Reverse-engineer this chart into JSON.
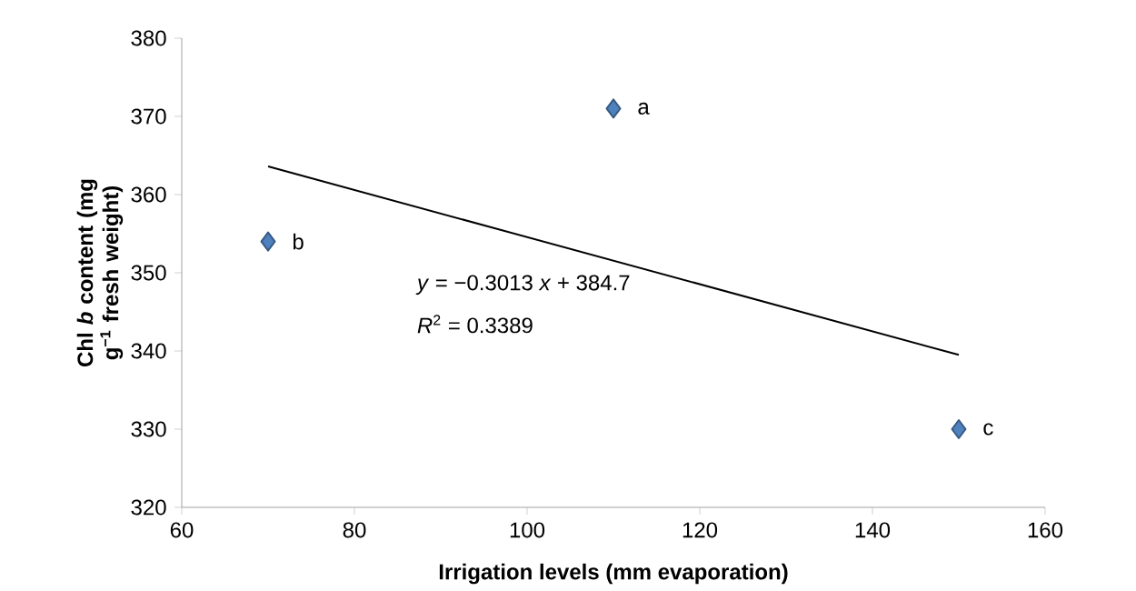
{
  "chart_data": {
    "type": "scatter",
    "xlabel": "Irrigation levels (mm evaporation)",
    "ylabel": "Chl *b* content (mg g$^{−1}$ fresh weight)",
    "xlim": [
      60,
      160
    ],
    "xticks": [
      60,
      80,
      100,
      120,
      140,
      160
    ],
    "ylim": [
      320,
      380
    ],
    "yticks": [
      320,
      330,
      340,
      350,
      360,
      370,
      380
    ],
    "series": [
      {
        "type": "scatter",
        "color": "#4f81bd",
        "marker": "diamond",
        "x": [
          70,
          110,
          150
        ],
        "values": [
          354,
          371,
          330
        ]
      },
      {
        "type": "line",
        "color": "#000000",
        "marker": "none",
        "x": [
          70,
          150
        ],
        "values": [
          363.6,
          339.5
        ]
      }
    ],
    "annotations": [
      {
        "text": "a",
        "x": 110,
        "y": 371
      },
      {
        "text": "b",
        "x": 70,
        "y": 354
      },
      {
        "text": "c",
        "x": 150,
        "y": 330
      },
      "*y* = −0.3013 *x* + 384.7",
      "*R*$^{2}$ = 0.3389"
    ]
  }
}
